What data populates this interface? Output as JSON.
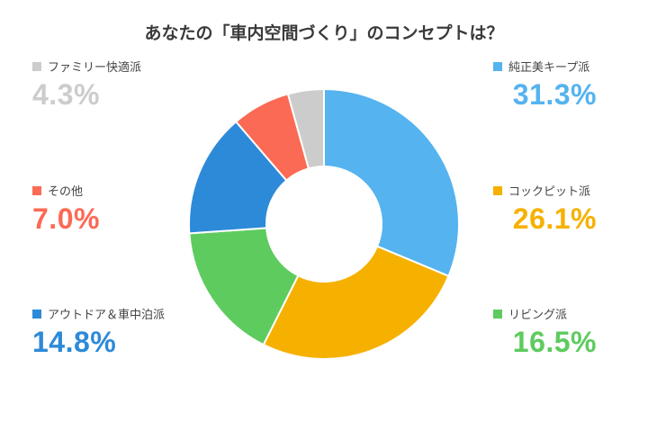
{
  "chart_data": {
    "type": "pie",
    "title": "あなたの「車内空間づくり」のコンセプトは？",
    "categories": [
      "純正美キープ派",
      "コックピット派",
      "リビング派",
      "アウトドア＆車中泊派",
      "その他",
      "ファミリー快適派"
    ],
    "values": [
      31.3,
      26.1,
      16.5,
      14.8,
      7.0,
      4.3
    ],
    "labels": [
      "31.3%",
      "26.1%",
      "16.5%",
      "14.8%",
      "7.0%",
      "4.3%"
    ],
    "colors": [
      "#55b3ef",
      "#f6b100",
      "#5ecb5e",
      "#2d8ad8",
      "#fb6a55",
      "#cccccc"
    ],
    "legend": "left-and-right"
  }
}
